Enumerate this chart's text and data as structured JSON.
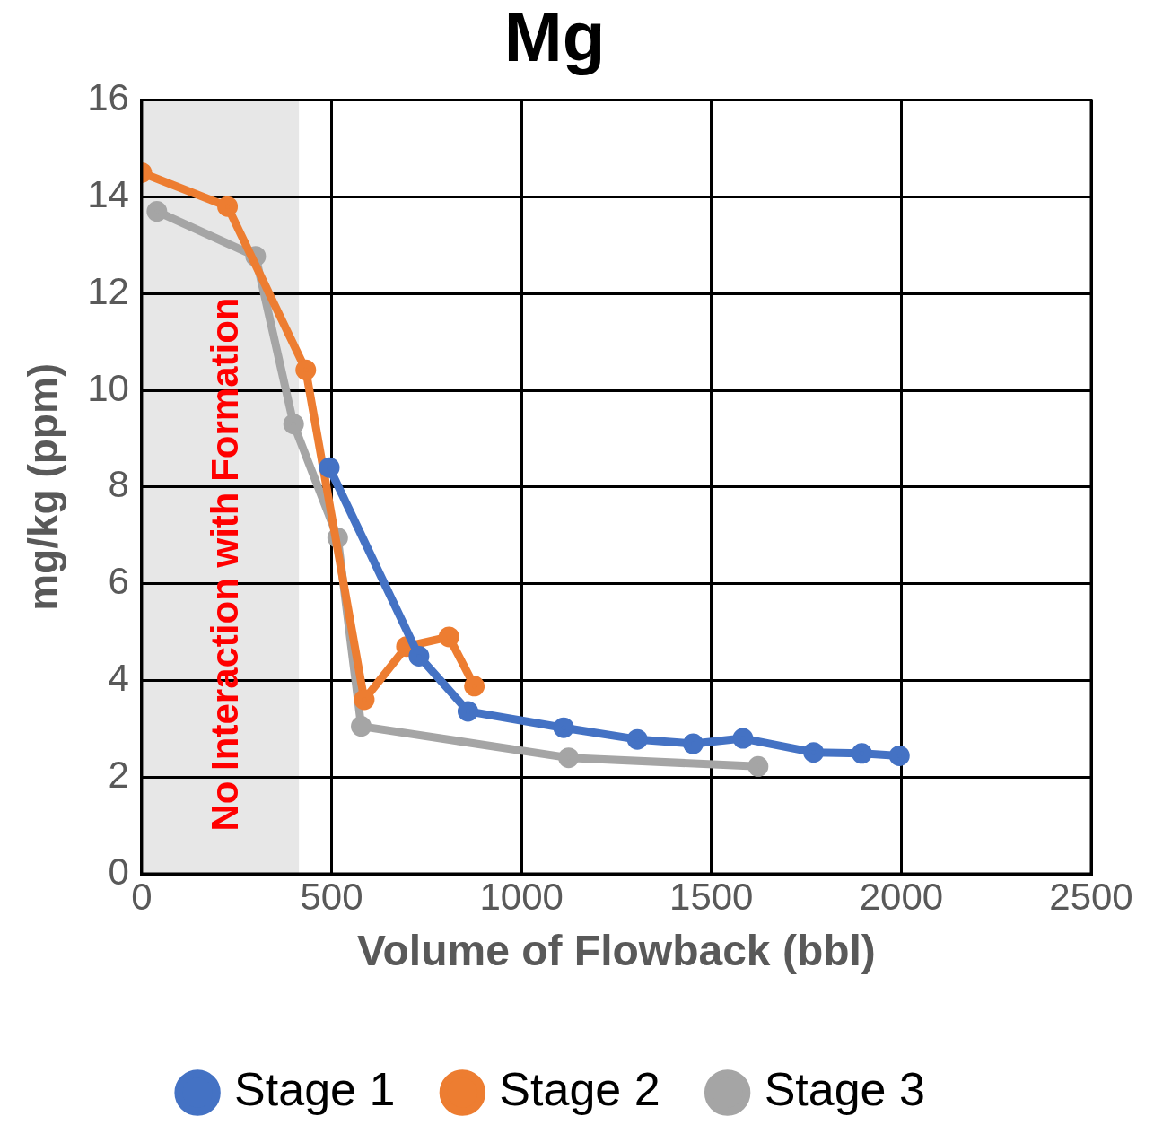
{
  "chart_data": {
    "type": "line",
    "title": "Mg",
    "xlabel": "Volume of Flowback (bbl)",
    "ylabel": "mg/kg (ppm)",
    "xlim": [
      0,
      2500
    ],
    "xticks": [
      0,
      500,
      1000,
      1500,
      2000,
      2500
    ],
    "ylim": [
      0,
      16
    ],
    "yticks": [
      0,
      2,
      4,
      6,
      8,
      10,
      12,
      14,
      16
    ],
    "grid": true,
    "legend": "bottom",
    "marker": "circle",
    "line_style": "solid",
    "bands": [
      {
        "axis": "x",
        "from": 0,
        "to": 414,
        "label": "No Interaction with Formation",
        "color": "#e7e7e7"
      }
    ],
    "series": [
      {
        "name": "Stage 1",
        "color": "#4472c4",
        "x": [
          494,
          730,
          859,
          1111,
          1305,
          1452,
          1583,
          1769,
          1896,
          1995
        ],
        "values": [
          8.4,
          4.5,
          3.36,
          3.02,
          2.78,
          2.69,
          2.8,
          2.51,
          2.49,
          2.44
        ]
      },
      {
        "name": "Stage 2",
        "color": "#ed7d31",
        "x": [
          0,
          226,
          432,
          586,
          697,
          809,
          876
        ],
        "values": [
          14.5,
          13.8,
          10.42,
          3.6,
          4.7,
          4.9,
          3.88
        ]
      },
      {
        "name": "Stage 3",
        "color": "#a5a5a5",
        "x": [
          40,
          300,
          400,
          516,
          578,
          1124,
          1623
        ],
        "values": [
          13.7,
          12.77,
          9.3,
          6.95,
          3.05,
          2.4,
          2.22
        ]
      }
    ]
  }
}
